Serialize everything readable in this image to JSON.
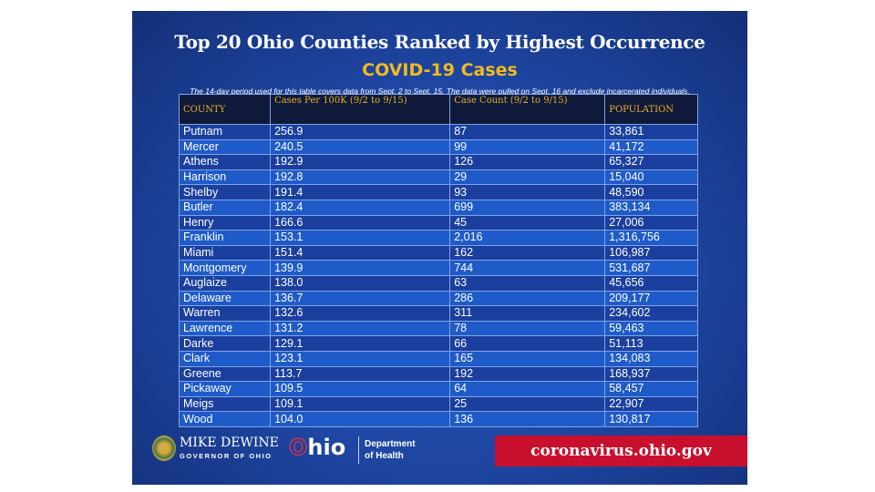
{
  "title": "Top 20 Ohio Counties Ranked by Highest Occurrence",
  "subtitle": "COVID-19 Cases",
  "note": "The 14-day period used for this table covers data from Sept. 2 to Sept. 15. The data were pulled on Sept. 16 and exclude incarcerated individuals.",
  "headers": [
    "COUNTY",
    "Cases Per 100K (9/2 to 9/15)",
    "Case Count (9/2 to 9/15)",
    "POPULATION"
  ],
  "rows": [
    [
      "Putnam",
      "256.9",
      "87",
      "33,861"
    ],
    [
      "Mercer",
      "240.5",
      "99",
      "41,172"
    ],
    [
      "Athens",
      "192.9",
      "126",
      "65,327"
    ],
    [
      "Harrison",
      "192.8",
      "29",
      "15,040"
    ],
    [
      "Shelby",
      "191.4",
      "93",
      "48,590"
    ],
    [
      "Butler",
      "182.4",
      "699",
      "383,134"
    ],
    [
      "Henry",
      "166.6",
      "45",
      "27,006"
    ],
    [
      "Franklin",
      "153.1",
      "2,016",
      "1,316,756"
    ],
    [
      "Miami",
      "151.4",
      "162",
      "106,987"
    ],
    [
      "Montgomery",
      "139.9",
      "744",
      "531,687"
    ],
    [
      "Auglaize",
      "138.0",
      "63",
      "45,656"
    ],
    [
      "Delaware",
      "136.7",
      "286",
      "209,177"
    ],
    [
      "Warren",
      "132.6",
      "311",
      "234,602"
    ],
    [
      "Lawrence",
      "131.2",
      "78",
      "59,463"
    ],
    [
      "Darke",
      "129.1",
      "66",
      "51,113"
    ],
    [
      "Clark",
      "123.1",
      "165",
      "134,083"
    ],
    [
      "Greene",
      "113.7",
      "192",
      "168,937"
    ],
    [
      "Pickaway",
      "109.5",
      "64",
      "58,457"
    ],
    [
      "Meigs",
      "109.1",
      "25",
      "22,907"
    ],
    [
      "Wood",
      "104.0",
      "136",
      "130,817"
    ]
  ],
  "footer": {
    "governor_name": "MIKE DEWINE",
    "governor_title": "GOVERNOR OF OHIO",
    "ohio_logo": "Ohio",
    "department": "Department",
    "department2": "of Health",
    "url": "coronavirus.ohio.gov"
  }
}
